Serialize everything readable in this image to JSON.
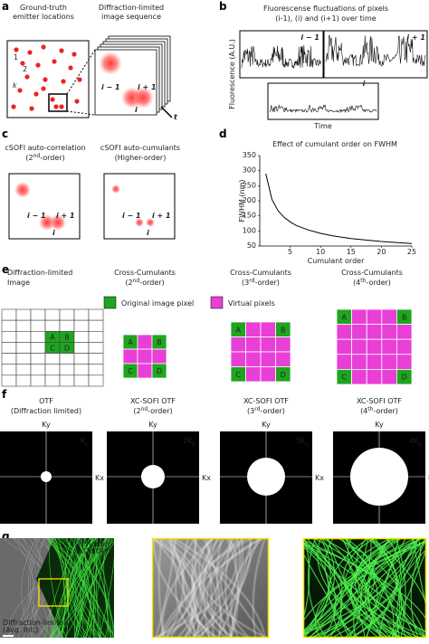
{
  "panel_a": {
    "label": "a",
    "left_title": [
      "Ground-truth",
      "emitter locations"
    ],
    "right_title": [
      "Diffraction-limited",
      "image sequence"
    ],
    "emitters": [
      "1",
      "2",
      "k"
    ],
    "frames": [
      "i − 1",
      "i + 1",
      "i"
    ],
    "time": "t"
  },
  "panel_b": {
    "label": "b",
    "title": [
      "Fluorescense fluctuations of pixels",
      "(i-1), (i) and (i+1) over time"
    ],
    "ylabel": "Fluorescence (A.U.)",
    "xlabel": "Time",
    "traces": [
      "i − 1",
      "i + 1",
      "i"
    ]
  },
  "panel_c": {
    "label": "c",
    "left_title": [
      "cSOFI auto-correlation",
      [
        "(2",
        "nd",
        "-order)"
      ]
    ],
    "right_title": [
      "cSOFI auto-cumulants",
      [
        "(Higher-order)"
      ]
    ],
    "frames": [
      "i − 1",
      "i + 1",
      "i"
    ]
  },
  "panel_d": {
    "label": "d",
    "title": "Effect of cumulant order on FWHM",
    "ylabel": "FWHM (nm)",
    "xlabel": "Cumulant order",
    "xlim": [
      0,
      25
    ],
    "ylim": [
      50,
      350
    ],
    "xticks": [
      5,
      10,
      15,
      20,
      25
    ],
    "yticks": [
      50,
      100,
      150,
      200,
      250,
      300,
      350
    ],
    "curve": {
      "x": [
        1,
        2,
        3,
        4,
        5,
        6,
        8,
        10,
        12,
        15,
        20,
        25
      ],
      "y": [
        290,
        205,
        167,
        145,
        130,
        118,
        103,
        92,
        84,
        75,
        65,
        58
      ]
    }
  },
  "panel_e": {
    "label": "e",
    "image_title": [
      "Diffraction-limited",
      "Image"
    ],
    "legend": [
      "Original image pixel",
      "Virtual pixels"
    ],
    "columns": [
      {
        "title": "Cross-Cumulants",
        "order": [
          "(2",
          "nd",
          "-order)"
        ]
      },
      {
        "title": "Cross-Cumulants",
        "order": [
          "(3",
          "rd",
          "-order)"
        ]
      },
      {
        "title": "Cross-Cumulants",
        "order": [
          "(4",
          "th",
          "-order)"
        ]
      }
    ],
    "pixels": [
      "A",
      "B",
      "C",
      "D"
    ]
  },
  "panel_f": {
    "label": "f",
    "axes": [
      "Ky",
      "Kx"
    ],
    "otfs": [
      {
        "title": "OTF",
        "sub": [
          "(Diffraction limited)"
        ],
        "k": [
          "K",
          "0"
        ]
      },
      {
        "title": "XC-SOFI OTF",
        "sub": [
          "(2",
          "nd",
          "-order)"
        ],
        "k": [
          "2K",
          "0"
        ]
      },
      {
        "title": "XC-SOFI OTF",
        "sub": [
          "(3",
          "rd",
          "-order)"
        ],
        "k": [
          "3K",
          "0"
        ]
      },
      {
        "title": "XC-SOFI OTF",
        "sub": [
          "(4",
          "th",
          "-order)"
        ],
        "k": [
          "4K",
          "0"
        ]
      }
    ]
  },
  "panel_g": {
    "label": "g",
    "top": [
      [
        "2",
        "nd",
        "-order"
      ],
      [
        "(XC-SOFI)"
      ]
    ],
    "bottom": [
      "Diffraction-limited",
      "(Avg. Int.)"
    ]
  }
}
